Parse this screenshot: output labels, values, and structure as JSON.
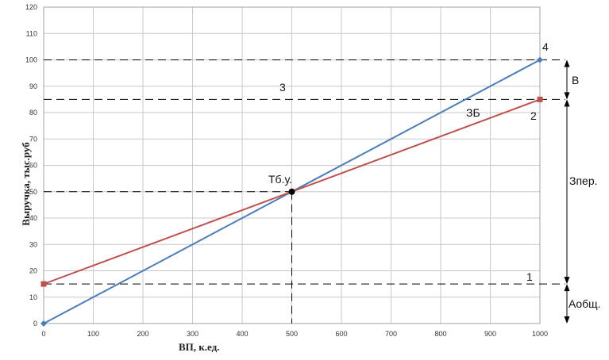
{
  "chart_data": {
    "type": "line",
    "xlabel": "ВП, к.ед.",
    "ylabel": "Выручка, тыс.руб",
    "xlim": [
      0,
      1000
    ],
    "ylim": [
      0,
      120
    ],
    "x_ticks": [
      "0",
      "100",
      "200",
      "300",
      "400",
      "500",
      "600",
      "700",
      "800",
      "900",
      "1000"
    ],
    "y_ticks": [
      "0",
      "10",
      "20",
      "30",
      "40",
      "50",
      "60",
      "70",
      "80",
      "90",
      "100",
      "110",
      "120"
    ],
    "grid": true,
    "series": [
      {
        "x": [
          0,
          1000
        ],
        "values": [
          0,
          100
        ],
        "color": "#4a7ebb",
        "marker": "diamond"
      },
      {
        "x": [
          0,
          1000
        ],
        "values": [
          15,
          85
        ],
        "color": "#c0504d",
        "marker": "square"
      }
    ],
    "reference_lines": [
      {
        "axis": "y",
        "value": 100
      },
      {
        "axis": "y",
        "value": 85
      },
      {
        "axis": "y",
        "value": 15
      },
      {
        "axis": "y",
        "value": 50,
        "x_to": 500
      },
      {
        "axis": "x",
        "value": 500,
        "y_to": 50
      }
    ],
    "break_even": {
      "x": 500,
      "y": 50,
      "label": "Тб.у."
    },
    "annotations": {
      "line_1": "1",
      "line_2": "2",
      "line_3": "3",
      "line_4": "4",
      "zb": "ЗБ",
      "v": "В",
      "zper": "Зпер.",
      "aobsch": "Аобщ."
    }
  }
}
